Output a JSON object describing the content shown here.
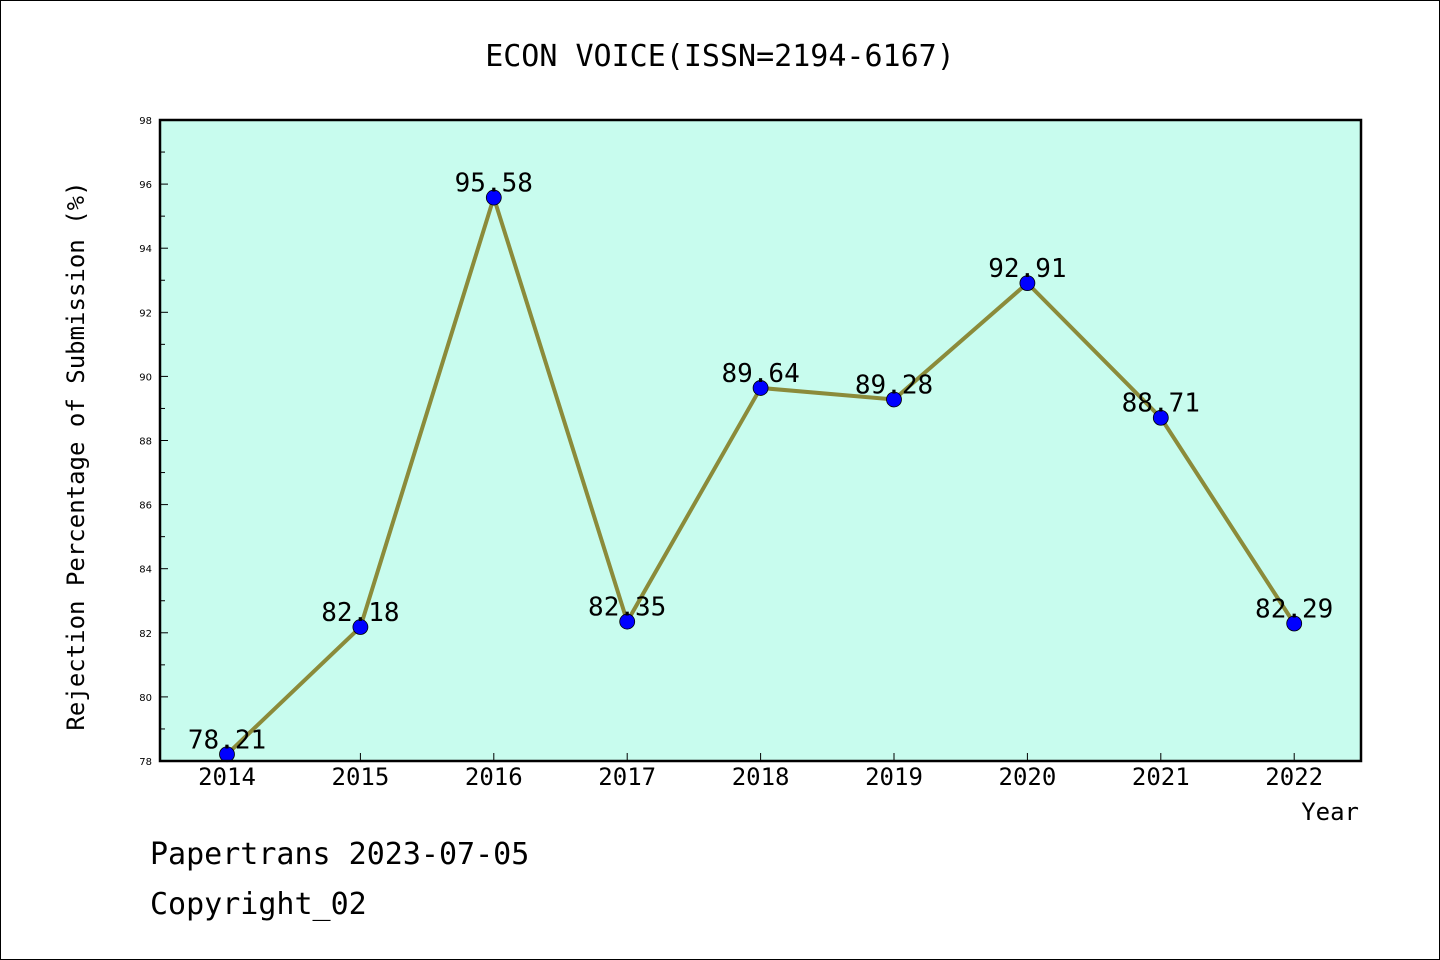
{
  "chart_data": {
    "type": "line",
    "title": "ECON VOICE(ISSN=2194-6167)",
    "xlabel": "Year",
    "ylabel": "Rejection Percentage of Submission (%)",
    "categories": [
      "2014",
      "2015",
      "2016",
      "2017",
      "2018",
      "2019",
      "2020",
      "2021",
      "2022"
    ],
    "values": [
      78.21,
      82.18,
      95.58,
      82.35,
      89.64,
      89.28,
      92.91,
      88.71,
      82.29
    ],
    "data_labels": [
      "78.21",
      "82.18",
      "95.58",
      "82.35",
      "89.64",
      "89.28",
      "92.91",
      "88.71",
      "82.29"
    ],
    "ylim": [
      78,
      98
    ],
    "yticks": [
      "78",
      "80",
      "82",
      "84",
      "86",
      "88",
      "90",
      "92",
      "94",
      "96",
      "98"
    ],
    "grid": false,
    "line_color": "#8b8b3a",
    "marker_color": "#0000ff",
    "plot_background": "#c8fcee"
  },
  "footer": {
    "line1": "Papertrans 2023-07-05",
    "line2": "Copyright_02"
  }
}
